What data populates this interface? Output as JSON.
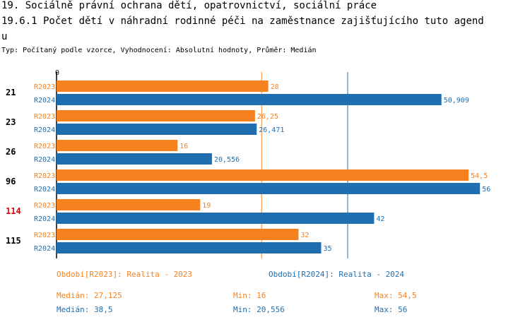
{
  "header": {
    "line1": "19. Sociálně právní ochrana dětí, opatrovnictví, sociální práce",
    "line2": "19.6.1 Počet dětí v náhradní rodinné péči na zaměstnance zajišťujícího tuto agend",
    "line3": "u",
    "subtitle": "Typ: Počítaný podle vzorce, Vyhodnocení: Absolutní hodnoty, Průměr: Medián"
  },
  "colors": {
    "series1": "#f5811f",
    "series2": "#1f6fb0",
    "highlight": "#e60000",
    "text": "#000000"
  },
  "chart_data": {
    "type": "bar",
    "orientation": "horizontal",
    "axis_zero_label": "0",
    "xlim": [
      0,
      57
    ],
    "categories": [
      "21",
      "23",
      "26",
      "96",
      "114",
      "115"
    ],
    "highlight_category": "114",
    "series": [
      {
        "name": "R2023",
        "values": [
          28,
          26.25,
          16,
          54.5,
          19,
          32
        ],
        "labels": [
          "28",
          "26,25",
          "16",
          "54,5",
          "19",
          "32"
        ]
      },
      {
        "name": "R2024",
        "values": [
          50.909,
          26.471,
          20.556,
          56,
          42,
          35
        ],
        "labels": [
          "50,909",
          "26,471",
          "20,556",
          "56",
          "42",
          "35"
        ]
      }
    ],
    "median_lines": [
      27.125,
      38.5
    ],
    "legend": {
      "series1": "Období[R2023]: Realita - 2023",
      "series2": "Období[R2024]: Realita - 2024"
    },
    "stats": [
      {
        "median": "Medián: 27,125",
        "min": "Min: 16",
        "max": "Max: 54,5"
      },
      {
        "median": "Medián: 38,5",
        "min": "Min: 20,556",
        "max": "Max: 56"
      }
    ]
  }
}
